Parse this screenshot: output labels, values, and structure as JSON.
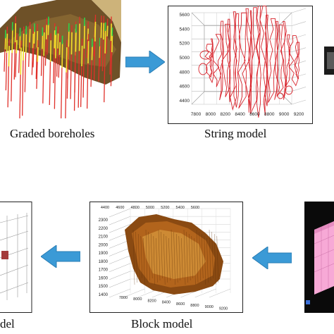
{
  "captions": {
    "graded_boreholes": "Graded boreholes",
    "string_model": "String model",
    "block_model": "Block model",
    "left_partial": "del"
  },
  "string_chart": {
    "y_ticks": [
      "5600",
      "5400",
      "5200",
      "5000",
      "4800",
      "4600",
      "4400"
    ],
    "x_ticks": [
      "7800",
      "8000",
      "8200",
      "8400",
      "8600",
      "8800",
      "9000",
      "9200"
    ]
  },
  "block_chart": {
    "y_ticks": [
      "2300",
      "2200",
      "2100",
      "2000",
      "1900",
      "1800",
      "1700",
      "1600",
      "1500",
      "1400"
    ],
    "top_ticks": [
      "4400",
      "4600",
      "4800",
      "5000",
      "5200",
      "5400",
      "5600"
    ],
    "bottom_ticks": [
      "7800",
      "8000",
      "8200",
      "8400",
      "8600",
      "8800",
      "9000",
      "9200"
    ]
  },
  "colors": {
    "arrow": "#3b9ad6",
    "string_line": "#d8242c",
    "block_surface": "#8a4a12",
    "pink_block": "#f7a9d6",
    "borehole_red": "#e0302a",
    "terrain": "#7a5a2a"
  }
}
